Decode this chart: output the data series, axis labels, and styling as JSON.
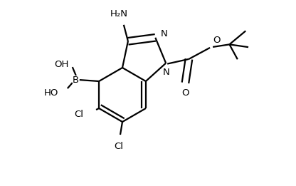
{
  "background": "#ffffff",
  "line_color": "#000000",
  "line_width": 1.6,
  "font_size": 9.5,
  "fig_width": 4.16,
  "fig_height": 2.61,
  "dpi": 100,
  "xlim": [
    0,
    4.16
  ],
  "ylim": [
    0,
    2.61
  ]
}
